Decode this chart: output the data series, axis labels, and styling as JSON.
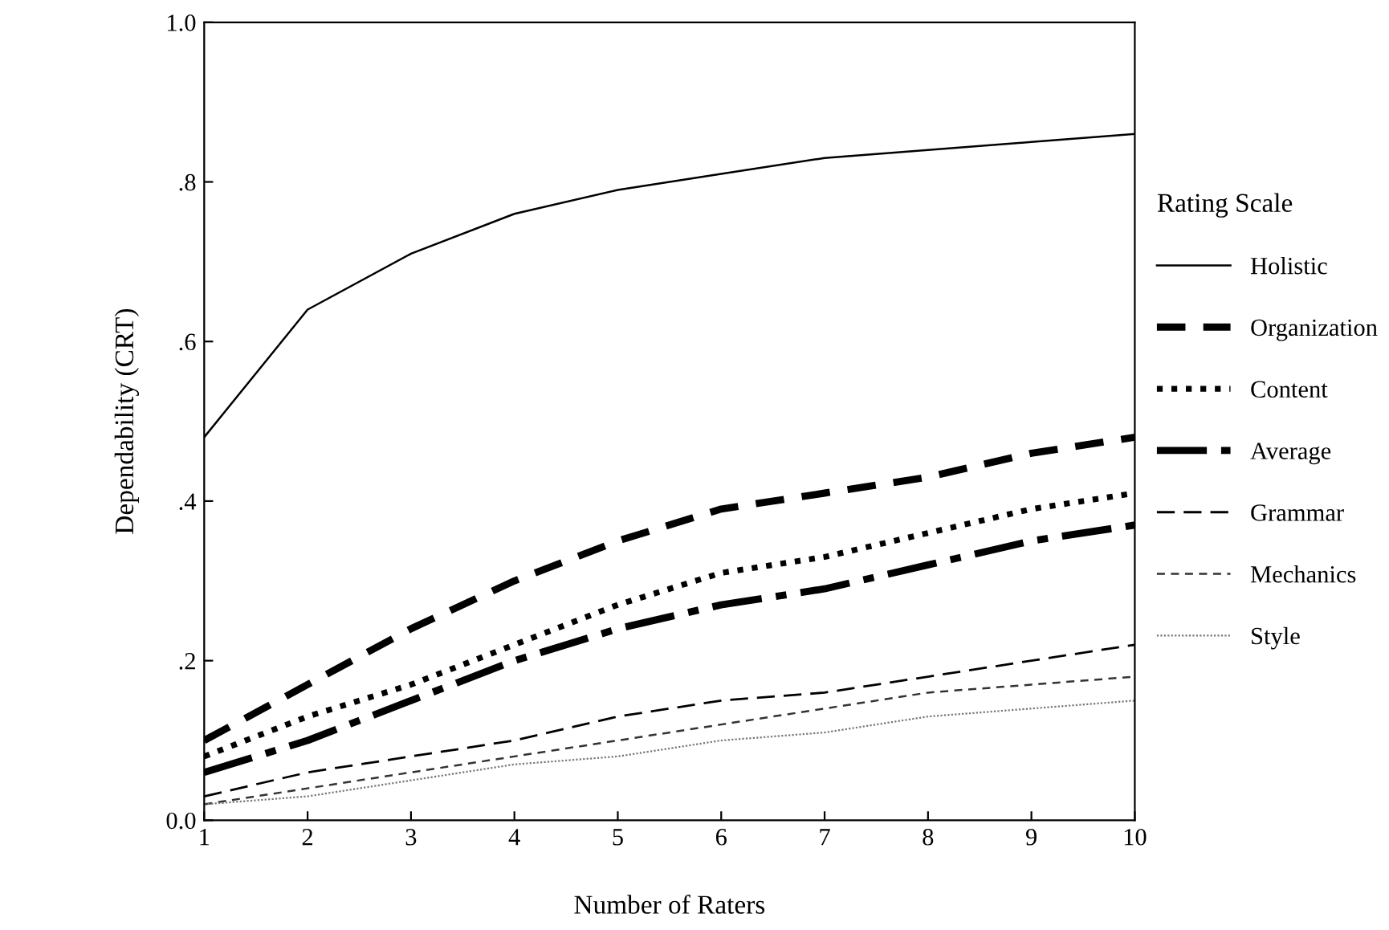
{
  "chart_data": {
    "type": "line",
    "xlabel": "Number of Raters",
    "ylabel": "Dependability (CRT)",
    "legend_title": "Rating Scale",
    "legend": "right",
    "grid": false,
    "marker": "none",
    "x": [
      1,
      2,
      3,
      4,
      5,
      6,
      7,
      8,
      9,
      10
    ],
    "xlim": [
      1,
      10
    ],
    "xticks": [
      1,
      2,
      3,
      4,
      5,
      6,
      7,
      8,
      9,
      10
    ],
    "ylim": [
      0,
      1
    ],
    "yticks": [
      {
        "value": 0,
        "label": "0.0"
      },
      {
        "value": 0.2,
        "label": ".2"
      },
      {
        "value": 0.4,
        "label": ".4"
      },
      {
        "value": 0.6,
        "label": ".6"
      },
      {
        "value": 0.8,
        "label": ".8"
      },
      {
        "value": 1,
        "label": "1.0"
      }
    ],
    "series": [
      {
        "name": "Holistic",
        "color": "#000000",
        "line_style": "solid",
        "values": [
          0.48,
          0.64,
          0.71,
          0.76,
          0.79,
          0.81,
          0.83,
          0.84,
          0.85,
          0.86
        ]
      },
      {
        "name": "Organization",
        "color": "#000000",
        "line_style": "dashed",
        "values": [
          0.1,
          0.17,
          0.24,
          0.3,
          0.35,
          0.39,
          0.41,
          0.43,
          0.46,
          0.48
        ]
      },
      {
        "name": "Content",
        "color": "#000000",
        "line_style": "dotted",
        "values": [
          0.08,
          0.13,
          0.17,
          0.22,
          0.27,
          0.31,
          0.33,
          0.36,
          0.39,
          0.41
        ]
      },
      {
        "name": "Average",
        "color": "#000000",
        "line_style": "dashdot",
        "values": [
          0.06,
          0.1,
          0.15,
          0.2,
          0.24,
          0.27,
          0.29,
          0.32,
          0.35,
          0.37
        ]
      },
      {
        "name": "Grammar",
        "color": "#000000",
        "line_style": "dashed",
        "values": [
          0.03,
          0.06,
          0.08,
          0.1,
          0.13,
          0.15,
          0.16,
          0.18,
          0.2,
          0.22
        ]
      },
      {
        "name": "Mechanics",
        "color": "#333333",
        "line_style": "dashed",
        "values": [
          0.02,
          0.04,
          0.06,
          0.08,
          0.1,
          0.12,
          0.14,
          0.16,
          0.17,
          0.18
        ]
      },
      {
        "name": "Style",
        "color": "#777777",
        "line_style": "dotted",
        "values": [
          0.02,
          0.03,
          0.05,
          0.07,
          0.08,
          0.1,
          0.11,
          0.13,
          0.14,
          0.15
        ]
      }
    ]
  }
}
